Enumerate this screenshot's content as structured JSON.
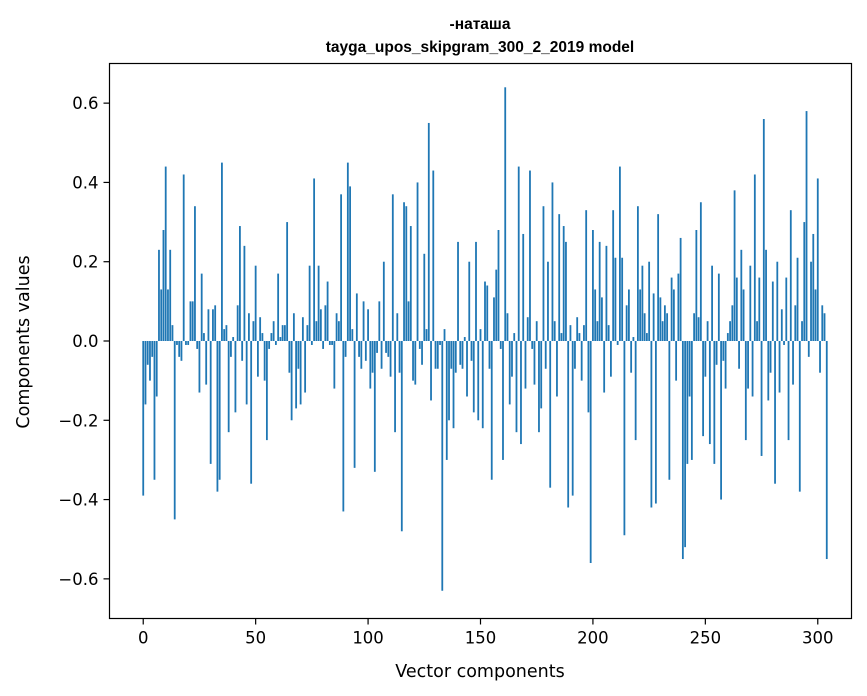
{
  "chart_data": {
    "type": "bar",
    "title": "-наташа",
    "subtitle": "tayga_upos_skipgram_300_2_2019 model",
    "xlabel": "Vector components",
    "ylabel": "Components values",
    "xlim": [
      -15,
      315
    ],
    "ylim": [
      -0.7,
      0.7
    ],
    "xticks": [
      0,
      50,
      100,
      150,
      200,
      250,
      300
    ],
    "xtick_labels": [
      "0",
      "50",
      "100",
      "150",
      "200",
      "250",
      "300"
    ],
    "yticks": [
      -0.6,
      -0.4,
      -0.2,
      0.0,
      0.2,
      0.4,
      0.6
    ],
    "ytick_labels": [
      "−0.6",
      "−0.4",
      "−0.2",
      "0.0",
      "0.2",
      "0.4",
      "0.6"
    ],
    "bar_color": "#1f77b4",
    "grid": false,
    "values": [
      -0.39,
      -0.16,
      -0.06,
      -0.1,
      -0.04,
      -0.35,
      -0.14,
      0.23,
      0.13,
      0.28,
      0.44,
      0.13,
      0.23,
      0.04,
      -0.45,
      -0.01,
      -0.04,
      -0.05,
      0.42,
      -0.01,
      -0.01,
      0.1,
      0.1,
      0.34,
      -0.02,
      -0.13,
      0.17,
      0.02,
      -0.11,
      0.08,
      -0.31,
      0.08,
      0.09,
      -0.38,
      -0.35,
      0.45,
      0.03,
      0.04,
      -0.23,
      -0.04,
      0.01,
      -0.18,
      0.09,
      0.29,
      -0.05,
      0.24,
      -0.16,
      0.07,
      -0.36,
      0.05,
      0.19,
      -0.09,
      0.06,
      0.02,
      -0.1,
      -0.25,
      -0.02,
      0.02,
      0.05,
      -0.01,
      0.17,
      0.01,
      0.04,
      0.04,
      0.3,
      -0.08,
      -0.2,
      0.07,
      -0.17,
      -0.07,
      -0.16,
      0.06,
      -0.13,
      0.04,
      0.19,
      -0.01,
      0.41,
      0.05,
      0.19,
      0.08,
      -0.02,
      0.09,
      0.15,
      -0.01,
      -0.01,
      -0.12,
      0.07,
      0.05,
      0.37,
      -0.43,
      -0.04,
      0.45,
      0.39,
      0.03,
      -0.32,
      0.12,
      -0.04,
      -0.07,
      0.1,
      -0.05,
      0.08,
      -0.12,
      -0.08,
      -0.33,
      -0.03,
      0.1,
      -0.07,
      0.2,
      -0.03,
      -0.04,
      -0.09,
      0.37,
      -0.23,
      0.07,
      -0.08,
      -0.48,
      0.35,
      0.34,
      0.1,
      0.29,
      -0.1,
      -0.11,
      0.4,
      -0.02,
      -0.06,
      0.22,
      0.03,
      0.55,
      -0.15,
      0.43,
      -0.07,
      -0.07,
      -0.01,
      -0.63,
      0.03,
      -0.3,
      -0.2,
      -0.07,
      -0.22,
      -0.08,
      0.25,
      -0.06,
      -0.07,
      0.01,
      -0.14,
      0.2,
      -0.05,
      -0.18,
      0.25,
      -0.2,
      0.03,
      -0.22,
      0.15,
      0.14,
      -0.07,
      -0.35,
      0.11,
      0.18,
      0.28,
      -0.02,
      -0.3,
      0.64,
      0.07,
      -0.16,
      -0.09,
      0.02,
      -0.23,
      0.44,
      -0.26,
      0.27,
      -0.12,
      0.06,
      0.43,
      -0.02,
      -0.11,
      0.05,
      -0.23,
      -0.17,
      0.34,
      -0.07,
      0.2,
      -0.37,
      0.4,
      0.05,
      -0.14,
      0.32,
      0.02,
      0.29,
      0.25,
      -0.42,
      0.04,
      -0.39,
      -0.07,
      0.06,
      0.02,
      -0.1,
      0.04,
      0.33,
      -0.18,
      -0.56,
      0.28,
      0.13,
      0.05,
      0.25,
      0.11,
      -0.13,
      0.24,
      0.04,
      -0.09,
      0.33,
      0.21,
      -0.01,
      0.44,
      0.21,
      -0.49,
      0.09,
      0.13,
      -0.08,
      0.01,
      -0.25,
      0.34,
      0.13,
      0.19,
      0.07,
      0.02,
      0.2,
      -0.42,
      0.12,
      -0.41,
      0.32,
      0.11,
      0.05,
      0.09,
      0.07,
      -0.35,
      0.16,
      0.13,
      -0.1,
      0.17,
      0.26,
      -0.55,
      -0.52,
      -0.31,
      -0.14,
      -0.3,
      0.07,
      0.28,
      0.06,
      0.35,
      -0.24,
      -0.09,
      0.05,
      -0.26,
      0.19,
      -0.31,
      -0.06,
      0.17,
      -0.4,
      -0.05,
      -0.12,
      0.02,
      0.05,
      0.09,
      0.38,
      0.16,
      -0.07,
      0.23,
      0.13,
      -0.25,
      -0.12,
      0.19,
      -0.14,
      0.42,
      0.05,
      0.16,
      -0.29,
      0.56,
      0.23,
      -0.15,
      -0.08,
      0.15,
      -0.36,
      0.2,
      -0.13,
      0.08,
      -0.01,
      0.16,
      -0.25,
      0.33,
      -0.11,
      0.09,
      0.21,
      -0.38,
      0.05,
      0.3,
      0.58,
      -0.04,
      0.2,
      0.27,
      0.13,
      0.41,
      -0.08,
      0.09,
      0.07,
      -0.55
    ]
  }
}
